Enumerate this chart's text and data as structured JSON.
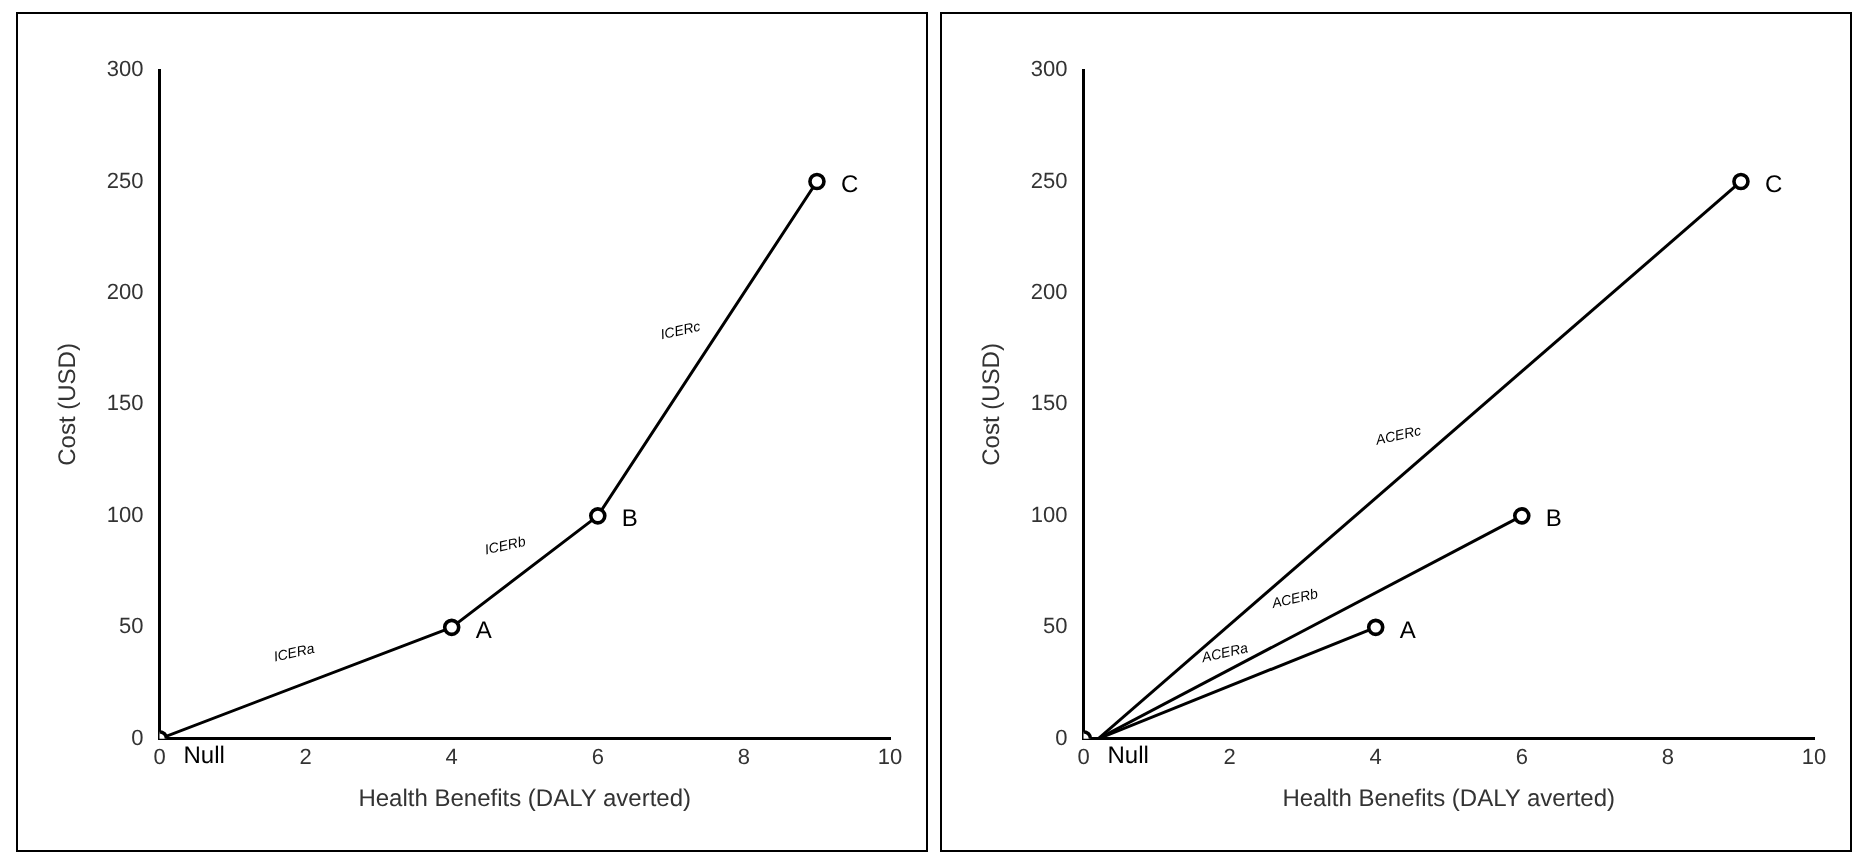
{
  "chart_data": [
    {
      "type": "line",
      "xlabel": "Health Benefits (DALY averted)",
      "ylabel": "Cost (USD)",
      "xlim": [
        0,
        10
      ],
      "xticks": [
        0,
        2,
        4,
        6,
        8,
        10
      ],
      "ylim": [
        0,
        300
      ],
      "yticks": [
        0,
        50,
        100,
        150,
        200,
        250,
        300
      ],
      "grid": false,
      "marker": "circle",
      "series": [
        {
          "color": "#000000",
          "x": [
            0,
            4,
            6,
            9
          ],
          "values": [
            0,
            50,
            100,
            250
          ]
        }
      ],
      "annotations": [
        {
          "text": "Null",
          "x": 0,
          "y": 0
        },
        {
          "text": "A",
          "x": 4,
          "y": 50
        },
        {
          "text": "B",
          "x": 6,
          "y": 100
        },
        {
          "text": "C",
          "x": 9,
          "y": 250
        },
        "ICERa",
        "ICERb",
        "ICERc"
      ]
    },
    {
      "type": "line",
      "xlabel": "Health Benefits (DALY averted)",
      "ylabel": "Cost (USD)",
      "xlim": [
        0,
        10
      ],
      "xticks": [
        0,
        2,
        4,
        6,
        8,
        10
      ],
      "ylim": [
        0,
        300
      ],
      "yticks": [
        0,
        50,
        100,
        150,
        200,
        250,
        300
      ],
      "grid": false,
      "marker": "none",
      "series": [
        {
          "type": "scatter",
          "marker": "circle",
          "color": "#000000",
          "x": [
            0,
            4,
            6,
            9
          ],
          "values": [
            0,
            50,
            100,
            250
          ]
        },
        {
          "color": "#000000",
          "x": [
            0.2,
            4
          ],
          "values": [
            0,
            50
          ]
        },
        {
          "color": "#000000",
          "x": [
            0.2,
            6
          ],
          "values": [
            0,
            100
          ]
        },
        {
          "color": "#000000",
          "x": [
            0.2,
            9
          ],
          "values": [
            0,
            250
          ]
        }
      ],
      "annotations": [
        {
          "text": "Null",
          "x": 0,
          "y": 0
        },
        {
          "text": "A",
          "x": 4,
          "y": 50
        },
        {
          "text": "B",
          "x": 6,
          "y": 100
        },
        {
          "text": "C",
          "x": 9,
          "y": 250
        },
        "ACERa",
        "ACERb",
        "ACERc"
      ]
    }
  ]
}
